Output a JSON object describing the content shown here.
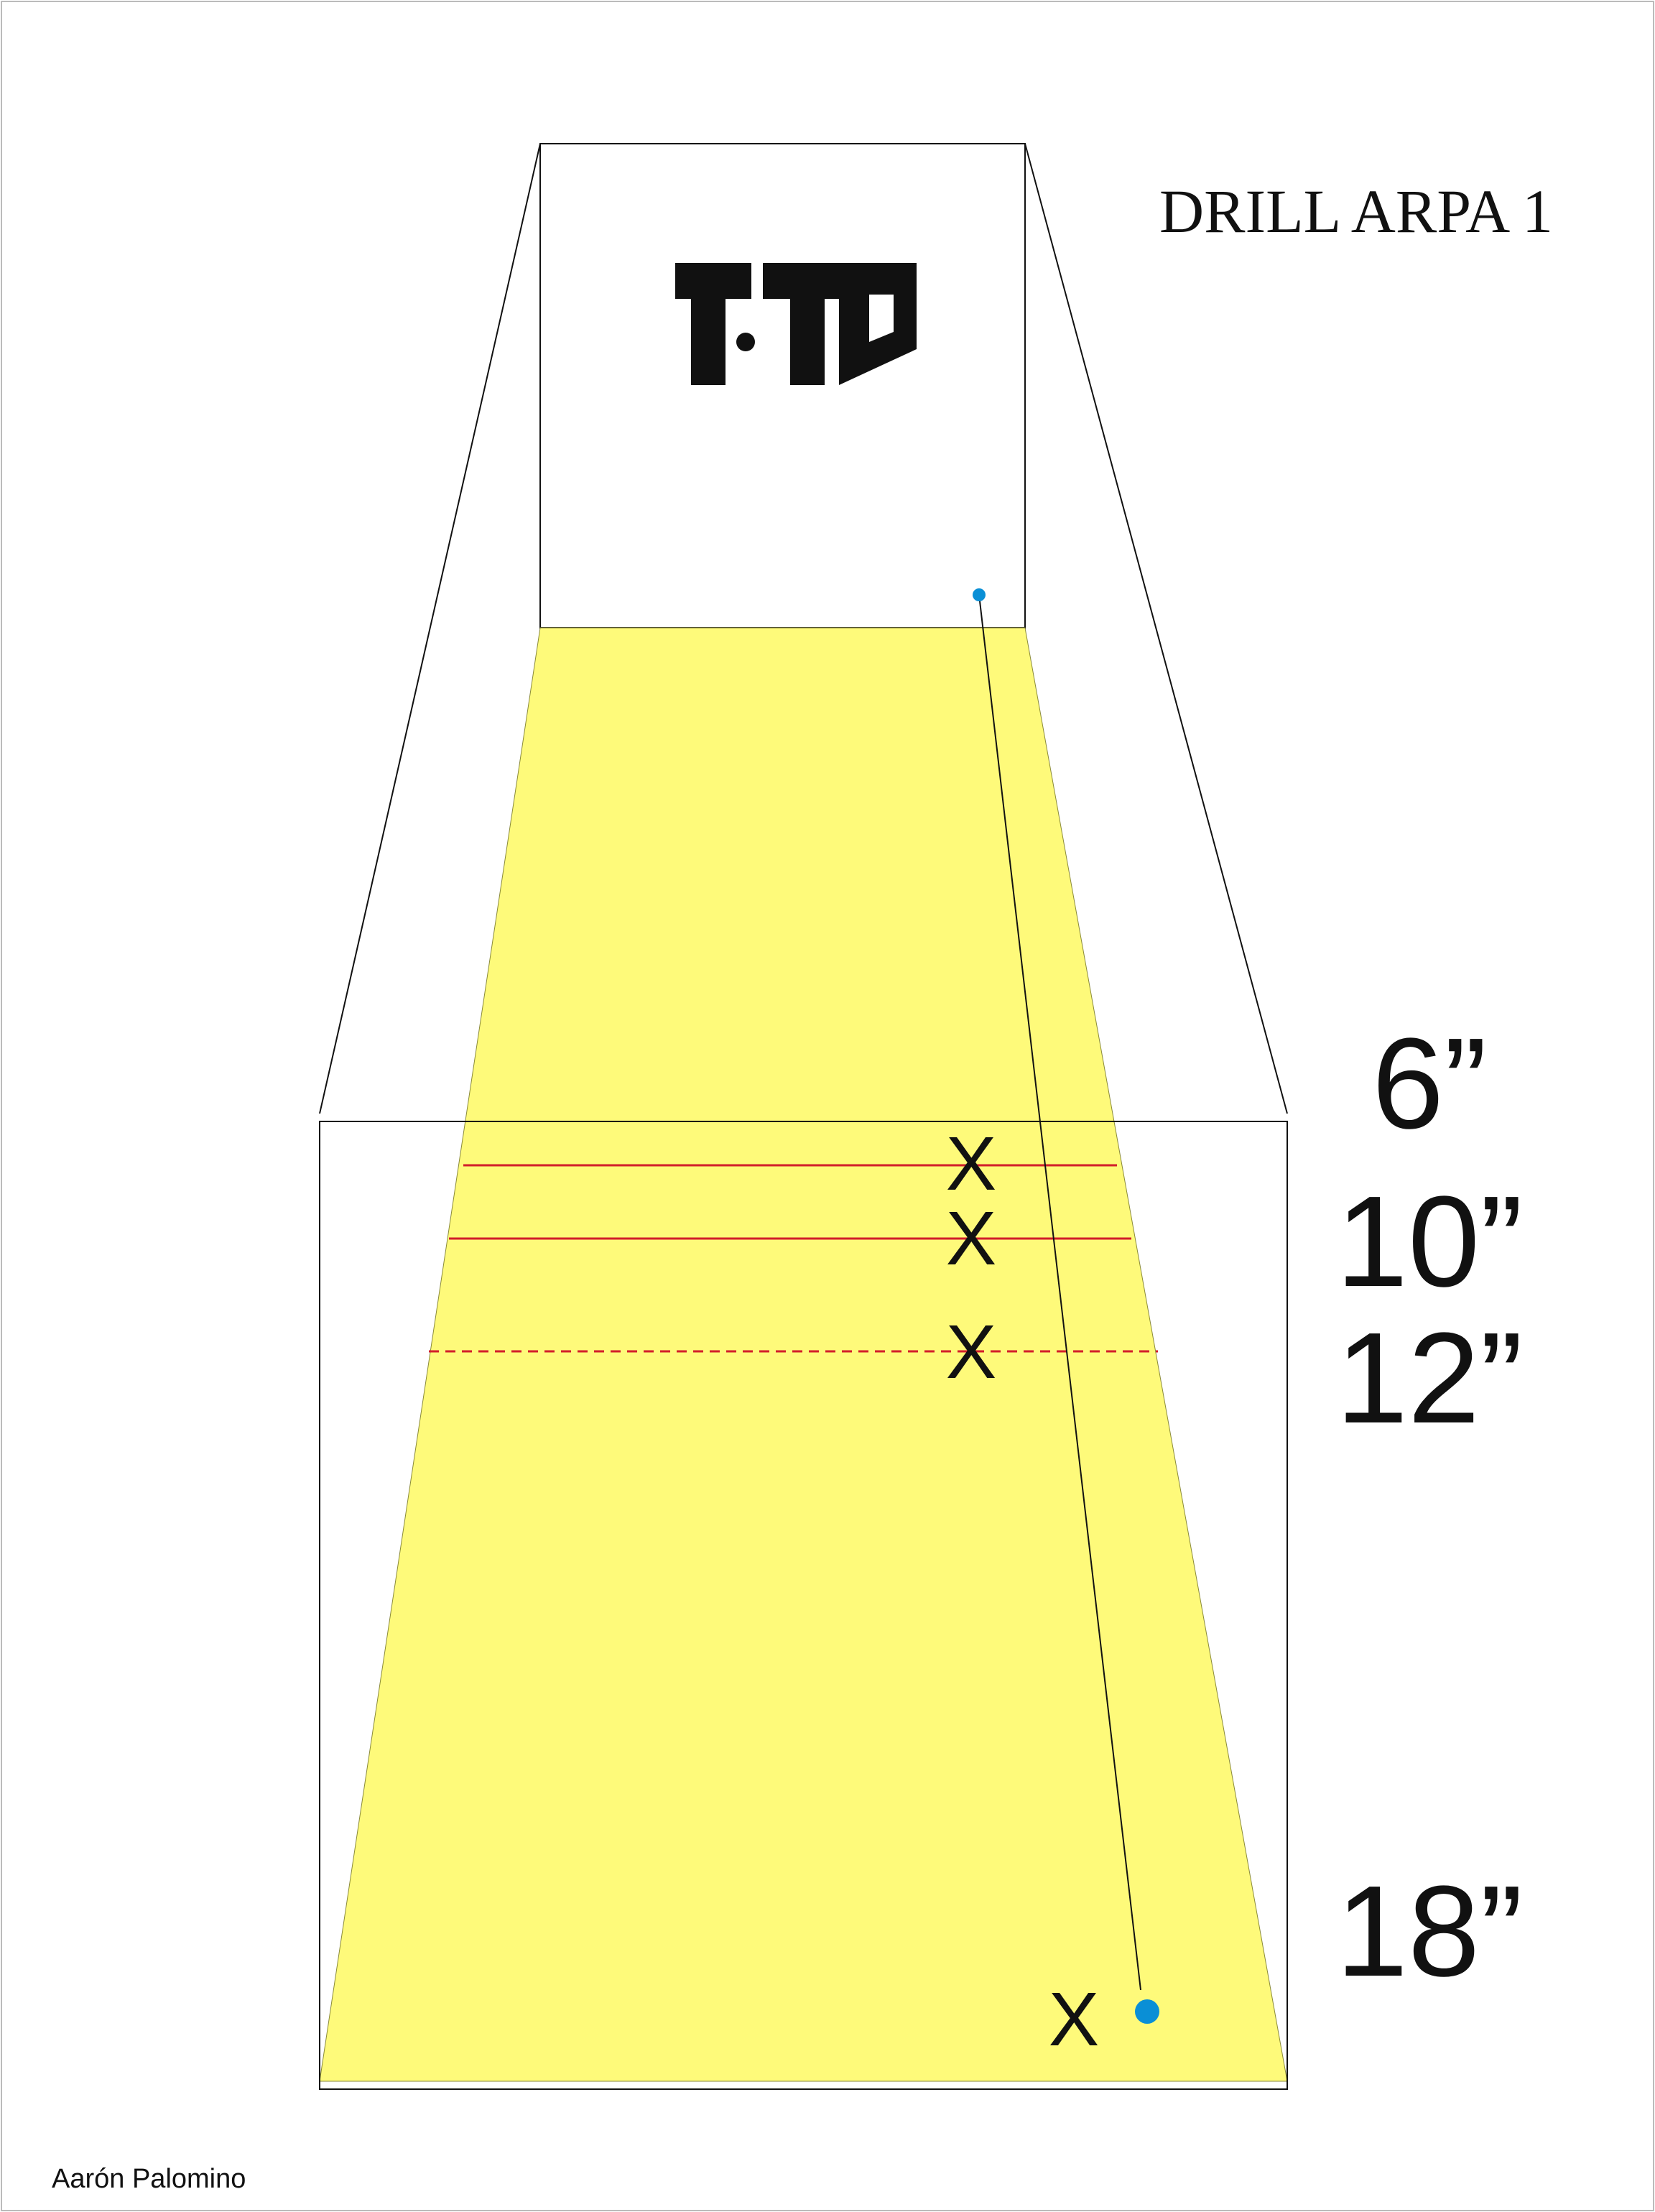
{
  "title": "DRILL ARPA 1",
  "author": "Aarón Palomino",
  "logo_text": "1T1D",
  "distances": {
    "d6": "6”",
    "d10": "10”",
    "d12": "12”",
    "d18": "18”"
  },
  "marker_glyph": "X",
  "colors": {
    "lane_fill": "#fefa7a",
    "rule_red": "#d21e2b",
    "target_blue": "#0a8fd6",
    "outline": "#111111"
  }
}
